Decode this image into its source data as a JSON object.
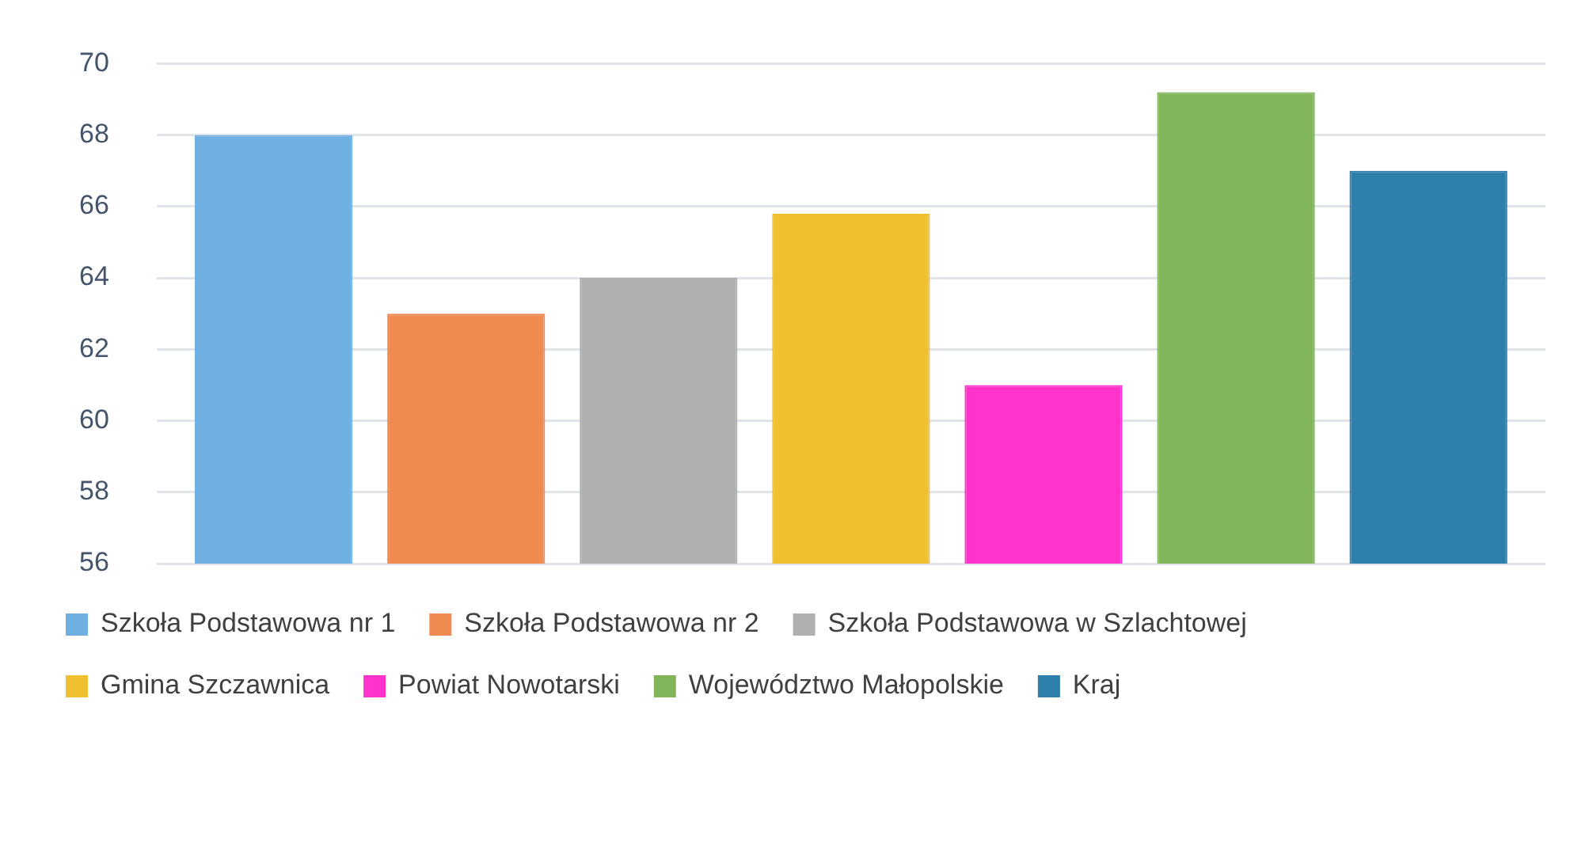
{
  "chart_data": {
    "type": "bar",
    "categories": [
      null
    ],
    "series": [
      {
        "name": "Szkoła Podstawowa nr 1",
        "color": "#6fb0e2",
        "values": [
          68
        ]
      },
      {
        "name": "Szkoła Podstawowa nr 2",
        "color": "#f08a50",
        "values": [
          63
        ]
      },
      {
        "name": "Szkoła Podstawowa w Szlachtowej",
        "color": "#b0b0b0",
        "values": [
          64
        ]
      },
      {
        "name": "Gmina Szczawnica",
        "color": "#f0c030",
        "values": [
          65.8
        ]
      },
      {
        "name": "Powiat Nowotarski",
        "color": "#ff33cc",
        "values": [
          61
        ]
      },
      {
        "name": "Województwo Małopolskie",
        "color": "#80b55a",
        "values": [
          69.2
        ]
      },
      {
        "name": "Kraj",
        "color": "#2f7fad",
        "values": [
          67
        ]
      }
    ],
    "ylim": [
      56,
      70
    ],
    "yticks": [
      56,
      58,
      60,
      62,
      64,
      66,
      68,
      70
    ],
    "grid": "y",
    "legend": "bottom",
    "tick_labels": "y"
  }
}
